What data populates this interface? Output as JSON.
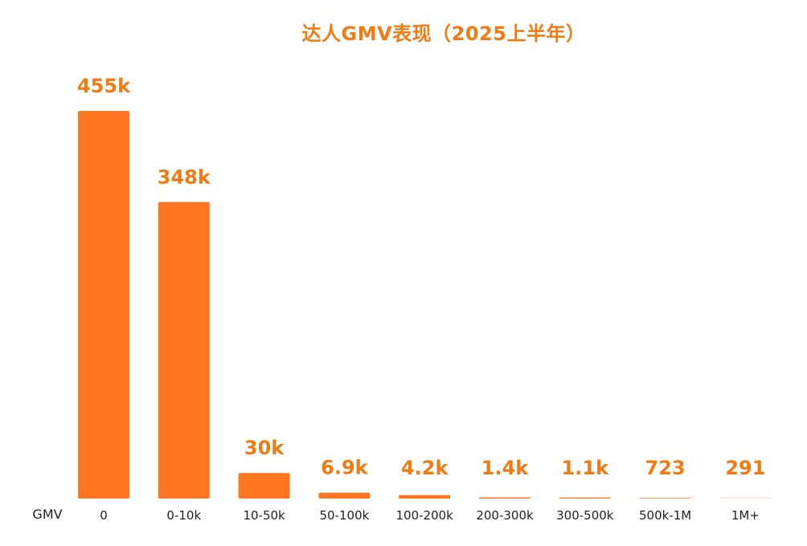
{
  "chart_data": {
    "type": "bar",
    "title": "达人GMV表现（2025上半年）",
    "xlabel": "GMV",
    "ylabel": "",
    "categories": [
      "0",
      "0-10k",
      "10-50k",
      "50-100k",
      "100-200k",
      "200-300k",
      "300-500k",
      "500k-1M",
      "1M+"
    ],
    "values": [
      455000,
      348000,
      30000,
      6900,
      4200,
      1400,
      1100,
      723,
      291
    ],
    "value_labels": [
      "455k",
      "348k",
      "30k",
      "6.9k",
      "4.2k",
      "1.4k",
      "1.1k",
      "723",
      "291"
    ],
    "ylim": [
      0,
      455000
    ],
    "grid": false,
    "legend": "none",
    "bar_color": "#ff7522",
    "label_color": "#f07b14"
  }
}
